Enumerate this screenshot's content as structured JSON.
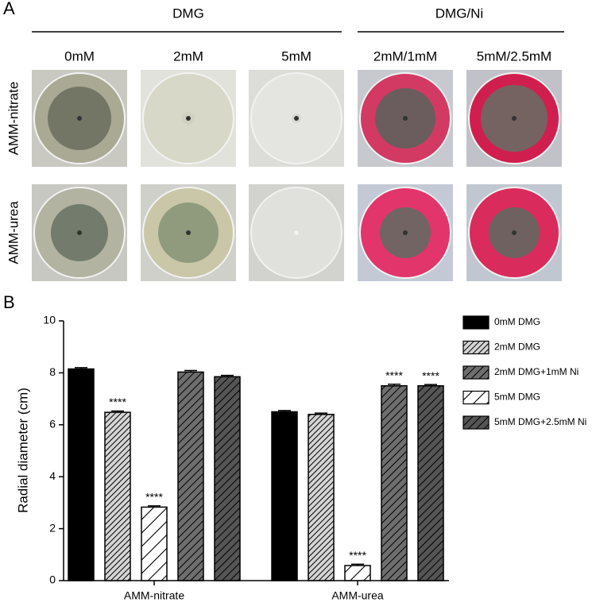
{
  "panel_a": {
    "label": "A",
    "groups": [
      "DMG",
      "DMG/Ni"
    ],
    "columns": [
      "0mM",
      "2mM",
      "5mM",
      "2mM/1mM",
      "5mM/2.5mM"
    ],
    "rows": [
      "AMM-nitrate",
      "AMM-urea"
    ]
  },
  "chart_data": {
    "type": "bar",
    "panel_label": "B",
    "ylabel": "Radial diameter (cm)",
    "categories": [
      "AMM-nitrate",
      "AMM-urea"
    ],
    "ylim": [
      0,
      10
    ],
    "yticks": [
      0,
      2,
      4,
      6,
      8,
      10
    ],
    "legend_order": [
      0,
      1,
      3,
      2,
      4
    ],
    "series": [
      {
        "name": "0mM DMG",
        "color": "#000000",
        "hatch": "none",
        "values": [
          8.15,
          6.5
        ],
        "errors": [
          0.05,
          0.05
        ],
        "significance": [
          null,
          null
        ]
      },
      {
        "name": "2mM DMG",
        "color": "#d4d4d4",
        "hatch": "fine",
        "values": [
          6.48,
          6.4
        ],
        "errors": [
          0.05,
          0.05
        ],
        "significance": [
          "****",
          null
        ]
      },
      {
        "name": "5mM DMG",
        "color": "#ffffff",
        "hatch": "wide",
        "values": [
          2.83,
          0.58
        ],
        "errors": [
          0.05,
          0.05
        ],
        "significance": [
          "****",
          "****"
        ]
      },
      {
        "name": "2mM DMG+1mM Ni",
        "color": "#6e6e6e",
        "hatch": "medium",
        "values": [
          8.03,
          7.5
        ],
        "errors": [
          0.06,
          0.06
        ],
        "significance": [
          null,
          "****"
        ]
      },
      {
        "name": "5mM DMG+2.5mM Ni",
        "color": "#555555",
        "hatch": "medium",
        "values": [
          7.85,
          7.5
        ],
        "errors": [
          0.05,
          0.05
        ],
        "significance": [
          null,
          "****"
        ]
      }
    ]
  }
}
